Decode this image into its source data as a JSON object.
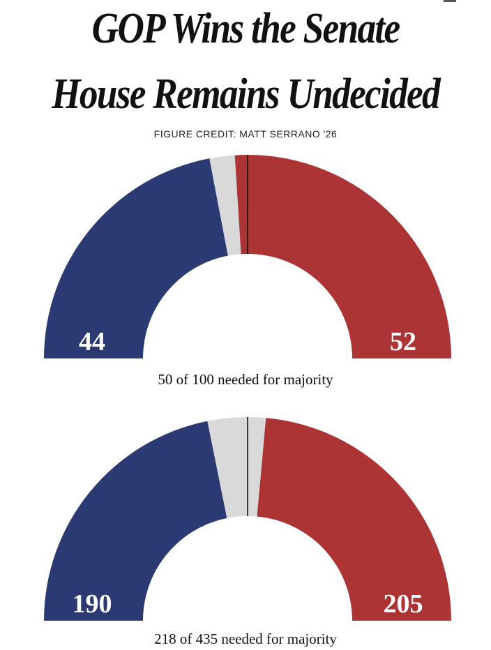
{
  "headline": {
    "line1": "GOP Wins the Senate",
    "line2": "House Remains Undecided"
  },
  "credit": "FIGURE CREDIT: MATT SERRANO '26",
  "colors": {
    "democrat": "#2c3a73",
    "undecided": "#d9d9d9",
    "republican": "#ad3434",
    "majority_line": "#111111"
  },
  "chart_data": [
    {
      "type": "pie",
      "chamber": "Senate",
      "total_seats": 100,
      "majority_needed": 50,
      "series": [
        {
          "party": "democrat",
          "value": 44,
          "label": "44"
        },
        {
          "party": "undecided",
          "value": 4,
          "label": ""
        },
        {
          "party": "republican",
          "value": 52,
          "label": "52"
        }
      ],
      "caption": "50 of 100 needed for majority"
    },
    {
      "type": "pie",
      "chamber": "House",
      "total_seats": 435,
      "majority_needed": 218,
      "series": [
        {
          "party": "democrat",
          "value": 190,
          "label": "190"
        },
        {
          "party": "undecided",
          "value": 40,
          "label": ""
        },
        {
          "party": "republican",
          "value": 205,
          "label": "205"
        }
      ],
      "caption": "218 of 435 needed for majority"
    }
  ]
}
